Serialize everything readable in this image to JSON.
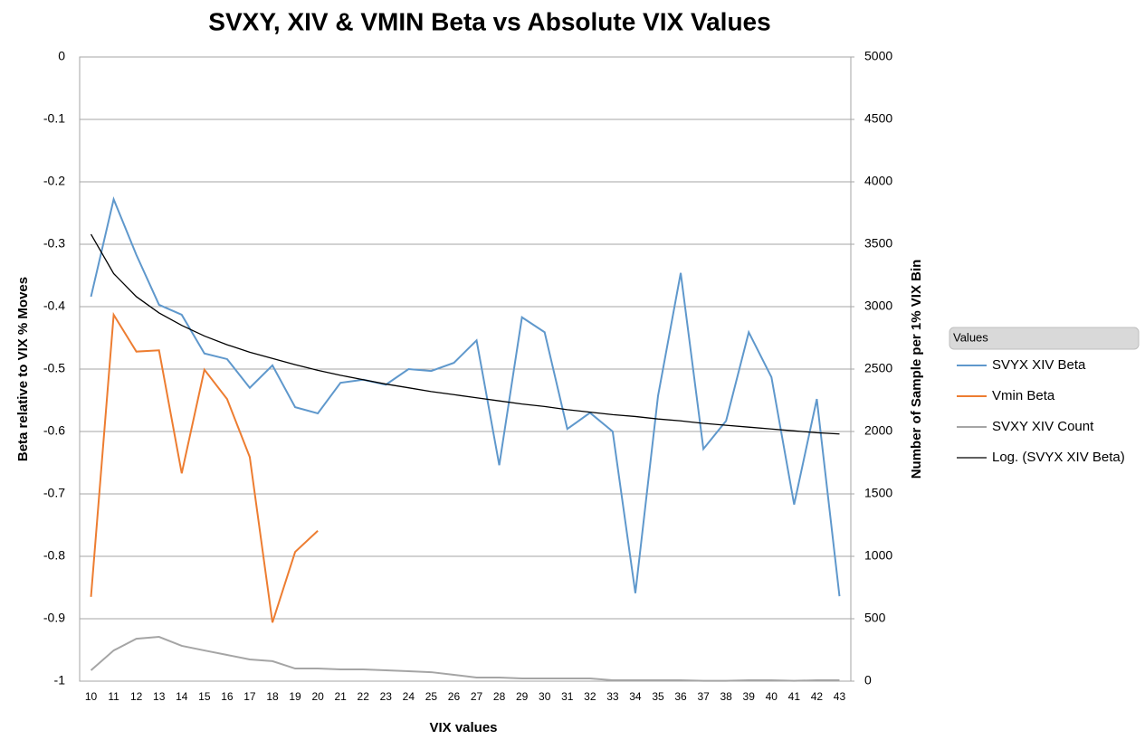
{
  "chart_data": {
    "type": "line",
    "title": "SVXY, XIV & VMIN Beta vs Absolute VIX Values",
    "x_label": "VIX values",
    "y_label": "Beta relative to VIX % Moves",
    "y2_label": "Number of Sample per 1% VIX Bin",
    "legend_title": "Values",
    "legend": "right",
    "grid": true,
    "categories": [
      "10",
      "11",
      "12",
      "13",
      "14",
      "15",
      "16",
      "17",
      "18",
      "19",
      "20",
      "21",
      "22",
      "23",
      "24",
      "25",
      "26",
      "27",
      "28",
      "29",
      "30",
      "31",
      "32",
      "33",
      "34",
      "35",
      "36",
      "37",
      "38",
      "39",
      "40",
      "41",
      "42",
      "43"
    ],
    "ylim": [
      -1,
      0
    ],
    "yticks": [
      0,
      -0.1,
      -0.2,
      -0.3,
      -0.4,
      -0.5,
      -0.6,
      -0.7,
      -0.8,
      -0.9,
      -1
    ],
    "y2lim": [
      0,
      5000
    ],
    "y2ticks": [
      5000,
      4500,
      4000,
      3500,
      3000,
      2500,
      2000,
      1500,
      1000,
      500,
      0
    ],
    "series": [
      {
        "name": "SVYX XIV Beta",
        "color": "#5f98cc",
        "values": [
          -0.384,
          -0.228,
          -0.317,
          -0.397,
          -0.413,
          -0.475,
          -0.484,
          -0.53,
          -0.494,
          -0.561,
          -0.571,
          -0.522,
          -0.517,
          -0.525,
          -0.5,
          -0.503,
          -0.49,
          -0.454,
          -0.654,
          -0.417,
          -0.441,
          -0.596,
          -0.57,
          -0.6,
          -0.859,
          -0.543,
          -0.346,
          -0.628,
          -0.583,
          -0.441,
          -0.513,
          -0.717,
          -0.548,
          -0.864
        ]
      },
      {
        "name": "Vmin Beta",
        "color": "#ed7d31",
        "values": [
          -0.865,
          -0.413,
          -0.472,
          -0.47,
          -0.667,
          -0.501,
          -0.548,
          -0.641,
          -0.906,
          -0.793,
          -0.759,
          null,
          null,
          null,
          null,
          null,
          null,
          null,
          null,
          null,
          null,
          null,
          null,
          null,
          null,
          null,
          null,
          null,
          null,
          null,
          null,
          null,
          null,
          null
        ]
      },
      {
        "name": "SVXY XIV Count",
        "color": "#a5a5a5",
        "axis": "y2",
        "values": [
          87,
          246,
          340,
          355,
          283,
          246,
          210,
          174,
          160,
          101,
          101,
          94,
          94,
          87,
          80,
          72,
          51,
          29,
          29,
          22,
          22,
          22,
          22,
          7,
          7,
          7,
          7,
          3,
          3,
          7,
          7,
          3,
          7,
          7
        ]
      },
      {
        "name": "Log. (SVYX XIV Beta)",
        "color": "#000000",
        "values": [
          -0.284,
          -0.347,
          -0.384,
          -0.41,
          -0.43,
          -0.447,
          -0.461,
          -0.473,
          -0.483,
          -0.493,
          -0.502,
          -0.51,
          -0.517,
          -0.524,
          -0.53,
          -0.536,
          -0.541,
          -0.546,
          -0.551,
          -0.556,
          -0.56,
          -0.565,
          -0.569,
          -0.573,
          -0.576,
          -0.58,
          -0.583,
          -0.587,
          -0.59,
          -0.593,
          -0.596,
          -0.599,
          -0.602,
          -0.604
        ]
      }
    ]
  }
}
